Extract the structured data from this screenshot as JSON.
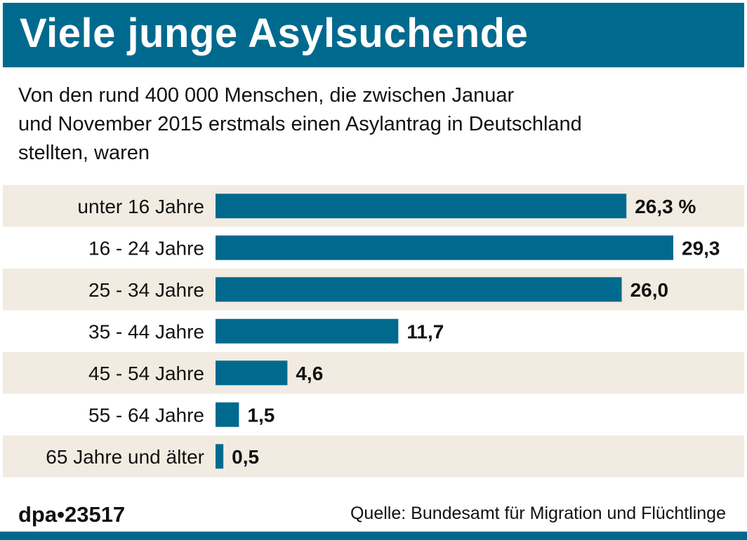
{
  "header": {
    "title": "Viele junge Asylsuchende"
  },
  "subtitle": {
    "lines": [
      "Von den rund 400 000 Menschen, die zwischen Januar",
      "und November 2015 erstmals einen Asylantrag in Deutschland",
      "stellten, waren"
    ]
  },
  "footer": {
    "code": "dpa•23517",
    "source": "Quelle: Bundesamt für Migration und Flüchtlinge"
  },
  "colors": {
    "accent": "#006a8e",
    "bar": "#006a8e",
    "stripe": "#f2ebe1",
    "text": "#111111"
  },
  "chart_data": {
    "type": "bar",
    "orientation": "horizontal",
    "title": "Viele junge Asylsuchende",
    "unit": "%",
    "categories": [
      "unter 16 Jahre",
      "16 - 24 Jahre",
      "25 - 34 Jahre",
      "35 - 44 Jahre",
      "45 - 54 Jahre",
      "55 - 64 Jahre",
      "65 Jahre und älter"
    ],
    "values": [
      26.3,
      29.3,
      26.0,
      11.7,
      4.6,
      1.5,
      0.5
    ],
    "value_labels": [
      "26,3 %",
      "29,3",
      "26,0",
      "11,7",
      "4,6",
      "1,5",
      "0,5"
    ],
    "xlim": [
      0,
      29.3
    ]
  }
}
